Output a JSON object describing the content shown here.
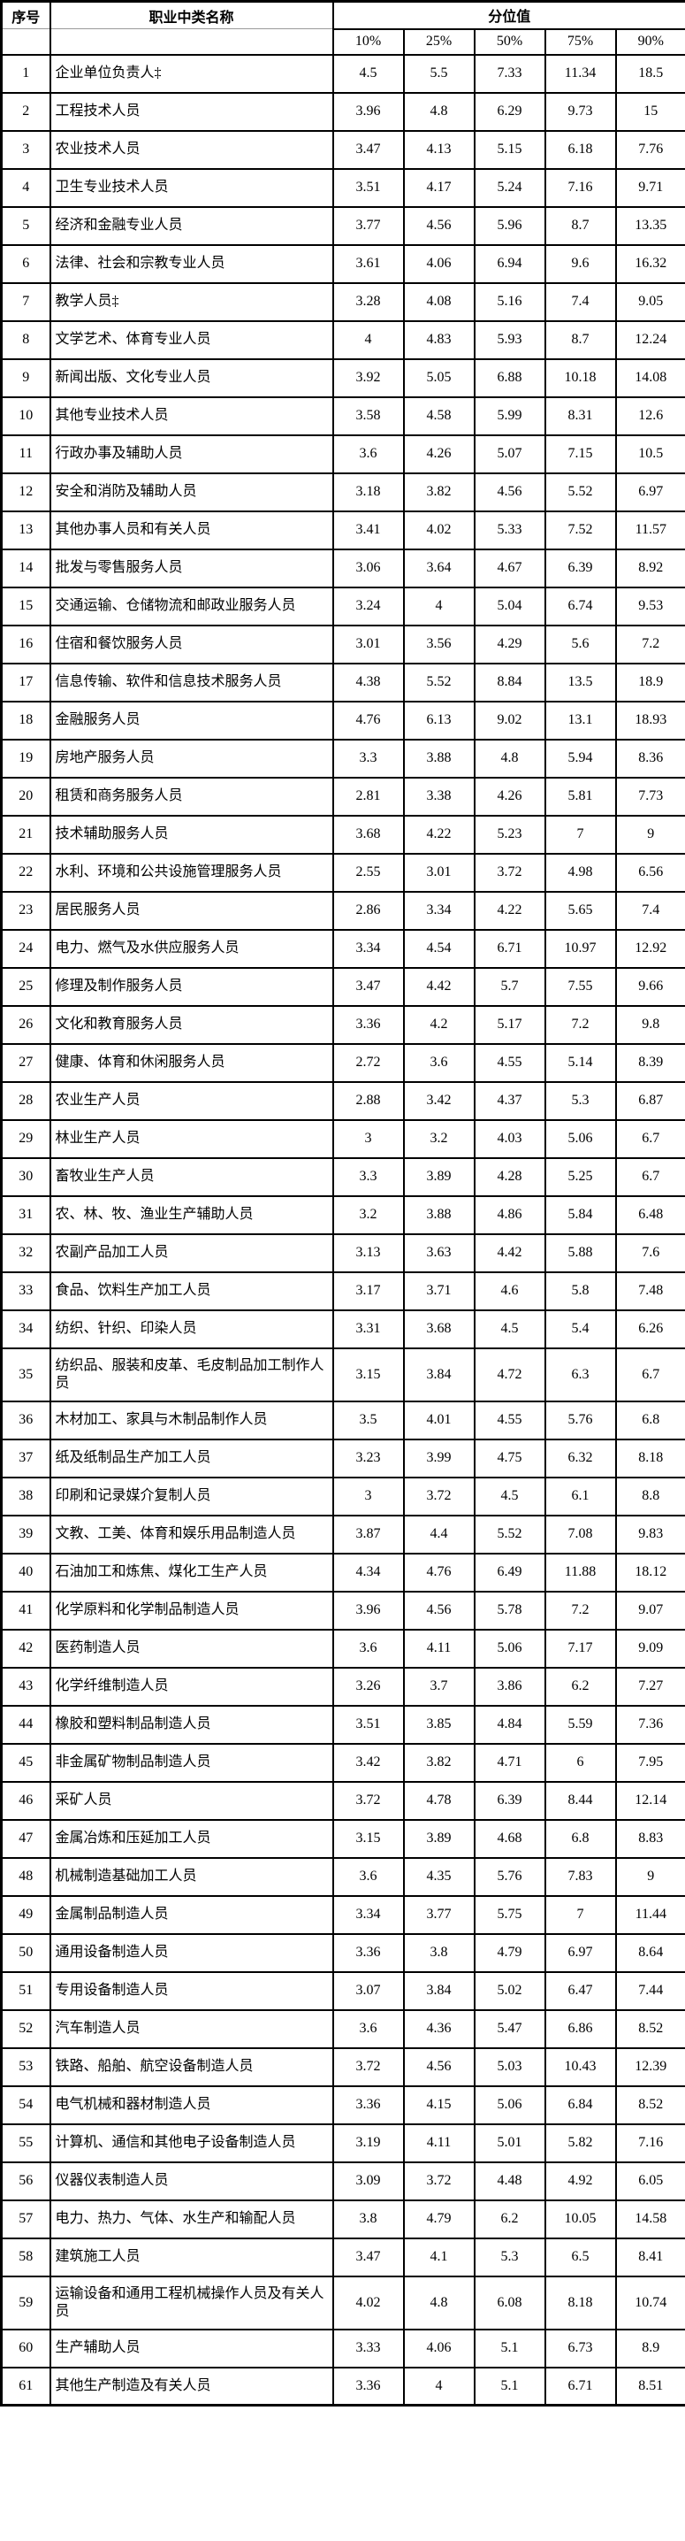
{
  "table": {
    "header": {
      "index_label": "序号",
      "name_label": "职业中类名称",
      "group_label": "分位值",
      "percentile_labels": [
        "10%",
        "25%",
        "50%",
        "75%",
        "90%"
      ]
    },
    "rows": [
      {
        "no": "1",
        "name": "企业单位负责人‡",
        "values": [
          "4.5",
          "5.5",
          "7.33",
          "11.34",
          "18.5"
        ]
      },
      {
        "no": "2",
        "name": "工程技术人员",
        "values": [
          "3.96",
          "4.8",
          "6.29",
          "9.73",
          "15"
        ]
      },
      {
        "no": "3",
        "name": "农业技术人员",
        "values": [
          "3.47",
          "4.13",
          "5.15",
          "6.18",
          "7.76"
        ]
      },
      {
        "no": "4",
        "name": "卫生专业技术人员",
        "values": [
          "3.51",
          "4.17",
          "5.24",
          "7.16",
          "9.71"
        ]
      },
      {
        "no": "5",
        "name": "经济和金融专业人员",
        "values": [
          "3.77",
          "4.56",
          "5.96",
          "8.7",
          "13.35"
        ]
      },
      {
        "no": "6",
        "name": "法律、社会和宗教专业人员",
        "values": [
          "3.61",
          "4.06",
          "6.94",
          "9.6",
          "16.32"
        ]
      },
      {
        "no": "7",
        "name": "教学人员‡",
        "values": [
          "3.28",
          "4.08",
          "5.16",
          "7.4",
          "9.05"
        ]
      },
      {
        "no": "8",
        "name": "文学艺术、体育专业人员",
        "values": [
          "4",
          "4.83",
          "5.93",
          "8.7",
          "12.24"
        ]
      },
      {
        "no": "9",
        "name": "新闻出版、文化专业人员",
        "values": [
          "3.92",
          "5.05",
          "6.88",
          "10.18",
          "14.08"
        ]
      },
      {
        "no": "10",
        "name": "其他专业技术人员",
        "values": [
          "3.58",
          "4.58",
          "5.99",
          "8.31",
          "12.6"
        ]
      },
      {
        "no": "11",
        "name": "行政办事及辅助人员",
        "values": [
          "3.6",
          "4.26",
          "5.07",
          "7.15",
          "10.5"
        ]
      },
      {
        "no": "12",
        "name": "安全和消防及辅助人员",
        "values": [
          "3.18",
          "3.82",
          "4.56",
          "5.52",
          "6.97"
        ]
      },
      {
        "no": "13",
        "name": "其他办事人员和有关人员",
        "values": [
          "3.41",
          "4.02",
          "5.33",
          "7.52",
          "11.57"
        ]
      },
      {
        "no": "14",
        "name": "批发与零售服务人员",
        "values": [
          "3.06",
          "3.64",
          "4.67",
          "6.39",
          "8.92"
        ]
      },
      {
        "no": "15",
        "name": "交通运输、仓储物流和邮政业服务人员",
        "values": [
          "3.24",
          "4",
          "5.04",
          "6.74",
          "9.53"
        ]
      },
      {
        "no": "16",
        "name": "住宿和餐饮服务人员",
        "values": [
          "3.01",
          "3.56",
          "4.29",
          "5.6",
          "7.2"
        ]
      },
      {
        "no": "17",
        "name": "信息传输、软件和信息技术服务人员",
        "values": [
          "4.38",
          "5.52",
          "8.84",
          "13.5",
          "18.9"
        ]
      },
      {
        "no": "18",
        "name": "金融服务人员",
        "values": [
          "4.76",
          "6.13",
          "9.02",
          "13.1",
          "18.93"
        ]
      },
      {
        "no": "19",
        "name": "房地产服务人员",
        "values": [
          "3.3",
          "3.88",
          "4.8",
          "5.94",
          "8.36"
        ]
      },
      {
        "no": "20",
        "name": "租赁和商务服务人员",
        "values": [
          "2.81",
          "3.38",
          "4.26",
          "5.81",
          "7.73"
        ]
      },
      {
        "no": "21",
        "name": "技术辅助服务人员",
        "values": [
          "3.68",
          "4.22",
          "5.23",
          "7",
          "9"
        ]
      },
      {
        "no": "22",
        "name": "水利、环境和公共设施管理服务人员",
        "values": [
          "2.55",
          "3.01",
          "3.72",
          "4.98",
          "6.56"
        ]
      },
      {
        "no": "23",
        "name": "居民服务人员",
        "values": [
          "2.86",
          "3.34",
          "4.22",
          "5.65",
          "7.4"
        ]
      },
      {
        "no": "24",
        "name": "电力、燃气及水供应服务人员",
        "values": [
          "3.34",
          "4.54",
          "6.71",
          "10.97",
          "12.92"
        ]
      },
      {
        "no": "25",
        "name": "修理及制作服务人员",
        "values": [
          "3.47",
          "4.42",
          "5.7",
          "7.55",
          "9.66"
        ]
      },
      {
        "no": "26",
        "name": "文化和教育服务人员",
        "values": [
          "3.36",
          "4.2",
          "5.17",
          "7.2",
          "9.8"
        ]
      },
      {
        "no": "27",
        "name": "健康、体育和休闲服务人员",
        "values": [
          "2.72",
          "3.6",
          "4.55",
          "5.14",
          "8.39"
        ]
      },
      {
        "no": "28",
        "name": "农业生产人员",
        "values": [
          "2.88",
          "3.42",
          "4.37",
          "5.3",
          "6.87"
        ]
      },
      {
        "no": "29",
        "name": "林业生产人员",
        "values": [
          "3",
          "3.2",
          "4.03",
          "5.06",
          "6.7"
        ]
      },
      {
        "no": "30",
        "name": "畜牧业生产人员",
        "values": [
          "3.3",
          "3.89",
          "4.28",
          "5.25",
          "6.7"
        ]
      },
      {
        "no": "31",
        "name": "农、林、牧、渔业生产辅助人员",
        "values": [
          "3.2",
          "3.88",
          "4.86",
          "5.84",
          "6.48"
        ]
      },
      {
        "no": "32",
        "name": "农副产品加工人员",
        "values": [
          "3.13",
          "3.63",
          "4.42",
          "5.88",
          "7.6"
        ]
      },
      {
        "no": "33",
        "name": "食品、饮料生产加工人员",
        "values": [
          "3.17",
          "3.71",
          "4.6",
          "5.8",
          "7.48"
        ]
      },
      {
        "no": "34",
        "name": "纺织、针织、印染人员",
        "values": [
          "3.31",
          "3.68",
          "4.5",
          "5.4",
          "6.26"
        ]
      },
      {
        "no": "35",
        "name": "纺织品、服装和皮革、毛皮制品加工制作人员",
        "values": [
          "3.15",
          "3.84",
          "4.72",
          "6.3",
          "6.7"
        ]
      },
      {
        "no": "36",
        "name": "木材加工、家具与木制品制作人员",
        "values": [
          "3.5",
          "4.01",
          "4.55",
          "5.76",
          "6.8"
        ]
      },
      {
        "no": "37",
        "name": "纸及纸制品生产加工人员",
        "values": [
          "3.23",
          "3.99",
          "4.75",
          "6.32",
          "8.18"
        ]
      },
      {
        "no": "38",
        "name": "印刷和记录媒介复制人员",
        "values": [
          "3",
          "3.72",
          "4.5",
          "6.1",
          "8.8"
        ]
      },
      {
        "no": "39",
        "name": "文教、工美、体育和娱乐用品制造人员",
        "values": [
          "3.87",
          "4.4",
          "5.52",
          "7.08",
          "9.83"
        ]
      },
      {
        "no": "40",
        "name": "石油加工和炼焦、煤化工生产人员",
        "values": [
          "4.34",
          "4.76",
          "6.49",
          "11.88",
          "18.12"
        ]
      },
      {
        "no": "41",
        "name": "化学原料和化学制品制造人员",
        "values": [
          "3.96",
          "4.56",
          "5.78",
          "7.2",
          "9.07"
        ]
      },
      {
        "no": "42",
        "name": "医药制造人员",
        "values": [
          "3.6",
          "4.11",
          "5.06",
          "7.17",
          "9.09"
        ]
      },
      {
        "no": "43",
        "name": "化学纤维制造人员",
        "values": [
          "3.26",
          "3.7",
          "3.86",
          "6.2",
          "7.27"
        ]
      },
      {
        "no": "44",
        "name": "橡胶和塑料制品制造人员",
        "values": [
          "3.51",
          "3.85",
          "4.84",
          "5.59",
          "7.36"
        ]
      },
      {
        "no": "45",
        "name": "非金属矿物制品制造人员",
        "values": [
          "3.42",
          "3.82",
          "4.71",
          "6",
          "7.95"
        ]
      },
      {
        "no": "46",
        "name": "采矿人员",
        "values": [
          "3.72",
          "4.78",
          "6.39",
          "8.44",
          "12.14"
        ]
      },
      {
        "no": "47",
        "name": "金属冶炼和压延加工人员",
        "values": [
          "3.15",
          "3.89",
          "4.68",
          "6.8",
          "8.83"
        ]
      },
      {
        "no": "48",
        "name": "机械制造基础加工人员",
        "values": [
          "3.6",
          "4.35",
          "5.76",
          "7.83",
          "9"
        ]
      },
      {
        "no": "49",
        "name": "金属制品制造人员",
        "values": [
          "3.34",
          "3.77",
          "5.75",
          "7",
          "11.44"
        ]
      },
      {
        "no": "50",
        "name": "通用设备制造人员",
        "values": [
          "3.36",
          "3.8",
          "4.79",
          "6.97",
          "8.64"
        ]
      },
      {
        "no": "51",
        "name": "专用设备制造人员",
        "values": [
          "3.07",
          "3.84",
          "5.02",
          "6.47",
          "7.44"
        ]
      },
      {
        "no": "52",
        "name": "汽车制造人员",
        "values": [
          "3.6",
          "4.36",
          "5.47",
          "6.86",
          "8.52"
        ]
      },
      {
        "no": "53",
        "name": "铁路、船舶、航空设备制造人员",
        "values": [
          "3.72",
          "4.56",
          "5.03",
          "10.43",
          "12.39"
        ]
      },
      {
        "no": "54",
        "name": "电气机械和器材制造人员",
        "values": [
          "3.36",
          "4.15",
          "5.06",
          "6.84",
          "8.52"
        ]
      },
      {
        "no": "55",
        "name": "计算机、通信和其他电子设备制造人员",
        "values": [
          "3.19",
          "4.11",
          "5.01",
          "5.82",
          "7.16"
        ]
      },
      {
        "no": "56",
        "name": "仪器仪表制造人员",
        "values": [
          "3.09",
          "3.72",
          "4.48",
          "4.92",
          "6.05"
        ]
      },
      {
        "no": "57",
        "name": "电力、热力、气体、水生产和输配人员",
        "values": [
          "3.8",
          "4.79",
          "6.2",
          "10.05",
          "14.58"
        ]
      },
      {
        "no": "58",
        "name": "建筑施工人员",
        "values": [
          "3.47",
          "4.1",
          "5.3",
          "6.5",
          "8.41"
        ]
      },
      {
        "no": "59",
        "name": "运输设备和通用工程机械操作人员及有关人员",
        "values": [
          "4.02",
          "4.8",
          "6.08",
          "8.18",
          "10.74"
        ]
      },
      {
        "no": "60",
        "name": "生产辅助人员",
        "values": [
          "3.33",
          "4.06",
          "5.1",
          "6.73",
          "8.9"
        ]
      },
      {
        "no": "61",
        "name": "其他生产制造及有关人员",
        "values": [
          "3.36",
          "4",
          "5.1",
          "6.71",
          "8.51"
        ]
      }
    ]
  }
}
